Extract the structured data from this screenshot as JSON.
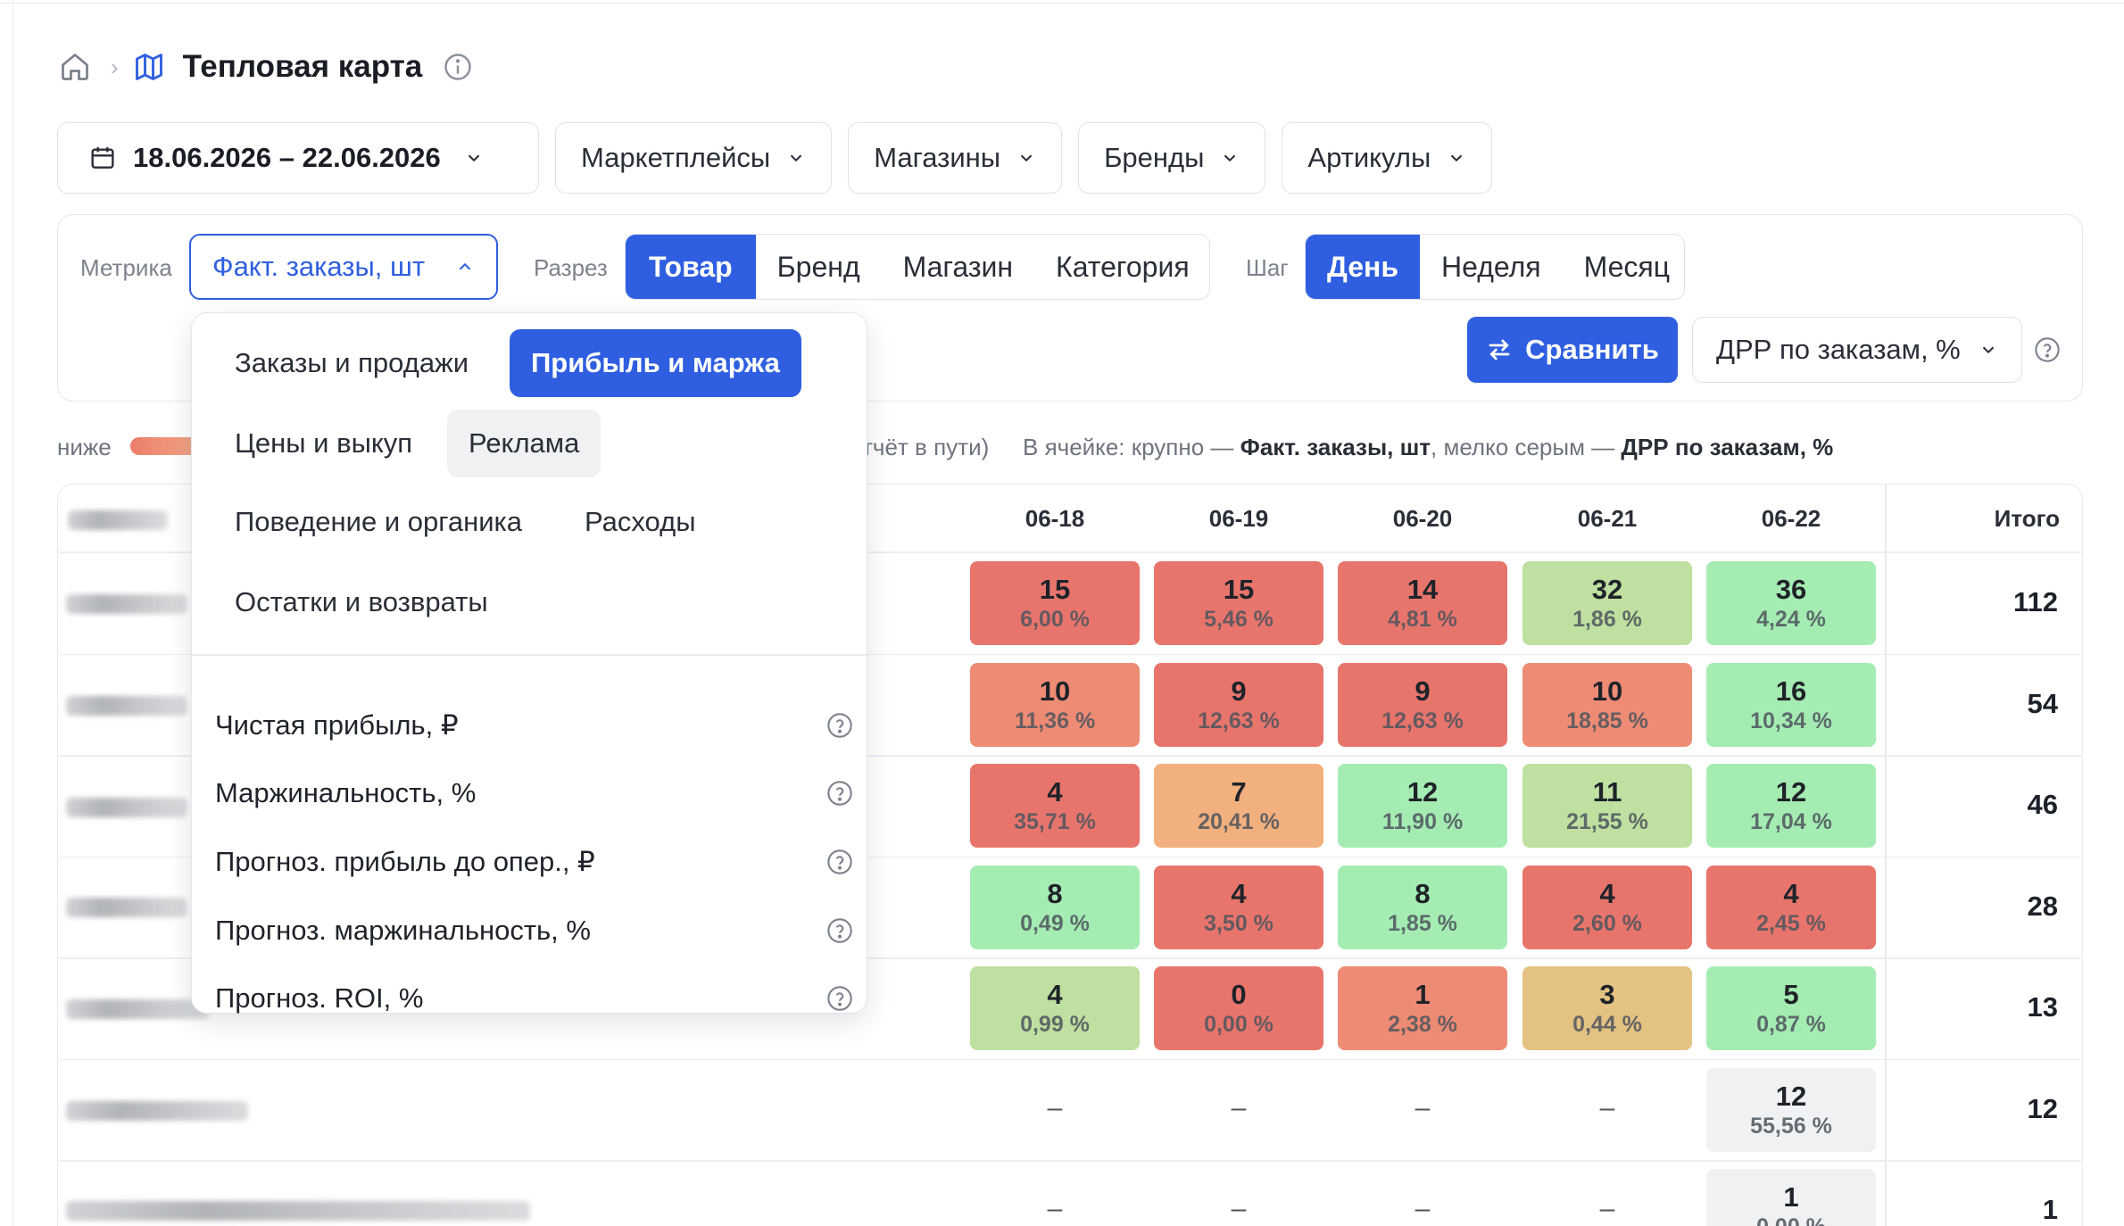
{
  "breadcrumb": {
    "title": "Тепловая карта",
    "home_icon": "home-icon",
    "map_icon": "map-icon",
    "info_icon": "info-icon"
  },
  "filters": {
    "date_range": "18.06.2026 – 22.06.2026",
    "marketplaces": "Маркетплейсы",
    "stores": "Магазины",
    "brands": "Бренды",
    "articles": "Артикулы"
  },
  "settings": {
    "metric_label": "Метрика",
    "metric_value": "Факт. заказы, шт",
    "slice_label": "Разрез",
    "slice_options": [
      "Товар",
      "Бренд",
      "Магазин",
      "Категория"
    ],
    "slice_selected": "Товар",
    "step_label": "Шаг",
    "step_options": [
      "День",
      "Неделя",
      "Месяц"
    ],
    "step_selected": "День",
    "compare_button": "Сравнить",
    "compare_metric": "ДРР по заказам, %"
  },
  "legend": {
    "low": "ниже",
    "partial": "тчёт в пути)",
    "cell_note_prefix": "В ячейке: крупно — ",
    "cell_note_big": "Факт. заказы, шт",
    "cell_note_mid": ", мелко серым — ",
    "cell_note_small": "ДРР по заказам, %"
  },
  "dropdown": {
    "groups": [
      "Заказы и продажи",
      "Прибыль и маржа",
      "Цены и выкуп",
      "Реклама",
      "Поведение и органика",
      "Расходы",
      "Остатки и возвраты"
    ],
    "selected_group": "Прибыль и маржа",
    "hovered_group": "Реклама",
    "items": [
      "Чистая прибыль, ₽",
      "Маржинальность, %",
      "Прогноз. прибыль до опер., ₽",
      "Прогноз. маржинальность, %",
      "Прогноз. ROI, %"
    ]
  },
  "table": {
    "dates": [
      "06-18",
      "06-19",
      "06-20",
      "06-21",
      "06-22"
    ],
    "total_header": "Итого",
    "hidden_subtitle": "тельная вся сбраница",
    "rows": [
      {
        "cells": [
          {
            "v": "15",
            "p": "6,00 %",
            "c": "#e8756c"
          },
          {
            "v": "15",
            "p": "5,46 %",
            "c": "#e8756c"
          },
          {
            "v": "14",
            "p": "4,81 %",
            "c": "#e8756c"
          },
          {
            "v": "32",
            "p": "1,86 %",
            "c": "#bfe0a0"
          },
          {
            "v": "36",
            "p": "4,24 %",
            "c": "#a5ecb3"
          }
        ],
        "total": "112"
      },
      {
        "cells": [
          {
            "v": "10",
            "p": "11,36 %",
            "c": "#ee8b74"
          },
          {
            "v": "9",
            "p": "12,63 %",
            "c": "#e8756c"
          },
          {
            "v": "9",
            "p": "12,63 %",
            "c": "#e8756c"
          },
          {
            "v": "10",
            "p": "18,85 %",
            "c": "#ee8b74"
          },
          {
            "v": "16",
            "p": "10,34 %",
            "c": "#a5ecb3"
          }
        ],
        "total": "54"
      },
      {
        "cells": [
          {
            "v": "4",
            "p": "35,71 %",
            "c": "#e8756c"
          },
          {
            "v": "7",
            "p": "20,41 %",
            "c": "#f2b07e"
          },
          {
            "v": "12",
            "p": "11,90 %",
            "c": "#a5ecb3"
          },
          {
            "v": "11",
            "p": "21,55 %",
            "c": "#bfe0a0"
          },
          {
            "v": "12",
            "p": "17,04 %",
            "c": "#a5ecb3"
          }
        ],
        "total": "46"
      },
      {
        "cells": [
          {
            "v": "8",
            "p": "0,49 %",
            "c": "#a5ecb3"
          },
          {
            "v": "4",
            "p": "3,50 %",
            "c": "#e8756c"
          },
          {
            "v": "8",
            "p": "1,85 %",
            "c": "#a5ecb3"
          },
          {
            "v": "4",
            "p": "2,60 %",
            "c": "#e8756c"
          },
          {
            "v": "4",
            "p": "2,45 %",
            "c": "#e8756c"
          }
        ],
        "total": "28"
      },
      {
        "cells": [
          {
            "v": "4",
            "p": "0,99 %",
            "c": "#bfe0a0"
          },
          {
            "v": "0",
            "p": "0,00 %",
            "c": "#e8756c"
          },
          {
            "v": "1",
            "p": "2,38 %",
            "c": "#ee8b74"
          },
          {
            "v": "3",
            "p": "0,44 %",
            "c": "#e4c282"
          },
          {
            "v": "5",
            "p": "0,87 %",
            "c": "#a5ecb3"
          }
        ],
        "total": "13"
      },
      {
        "cells": [
          {
            "dash": "–"
          },
          {
            "dash": "–"
          },
          {
            "dash": "–"
          },
          {
            "dash": "–"
          },
          {
            "v": "12",
            "p": "55,56 %",
            "c": "#f0f1f3"
          }
        ],
        "total": "12"
      },
      {
        "cells": [
          {
            "dash": "–"
          },
          {
            "dash": "–"
          },
          {
            "dash": "–"
          },
          {
            "dash": "–"
          },
          {
            "v": "1",
            "p": "0,00 %",
            "c": "#f0f1f3"
          }
        ],
        "total": "1"
      }
    ]
  },
  "colors": {
    "accent": "#2f5fe0",
    "red": "#e8756c",
    "green": "#a5ecb3"
  }
}
